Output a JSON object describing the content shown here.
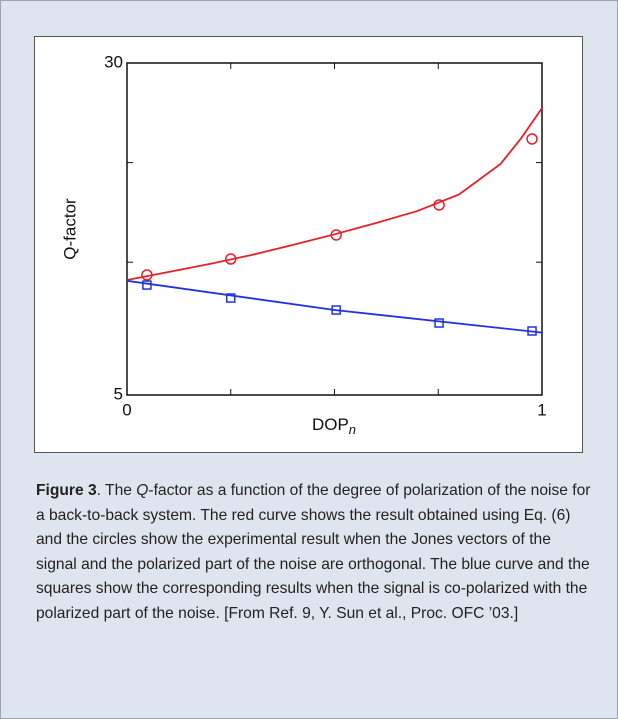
{
  "chart_data": {
    "type": "line",
    "y_label": "Q-factor",
    "x_label": "DOP",
    "x_label_sub": "n",
    "xlim": [
      0,
      1
    ],
    "xticks": [
      0,
      1
    ],
    "minor_xticks": [
      0.25,
      0.5,
      0.75
    ],
    "ylim": [
      5,
      30
    ],
    "yticks": [
      5,
      30
    ],
    "minor_yticks": [
      15,
      22.5
    ],
    "series": [
      {
        "style": "line",
        "color": "#e8202a",
        "x": [
          0,
          0.1,
          0.2,
          0.3,
          0.4,
          0.5,
          0.6,
          0.7,
          0.8,
          0.9,
          0.95,
          1.0
        ],
        "values": [
          13.66,
          14.26,
          14.87,
          15.54,
          16.3,
          17.1,
          17.95,
          18.86,
          20.1,
          22.4,
          24.35,
          26.6
        ]
      },
      {
        "style": "circle",
        "color": "#e8202a",
        "x": [
          0.048,
          0.25,
          0.504,
          0.752,
          0.976
        ],
        "values": [
          14.04,
          15.24,
          17.05,
          19.31,
          24.28
        ]
      },
      {
        "style": "line",
        "color": "#2233dd",
        "x": [
          0,
          0.5,
          1
        ],
        "values": [
          13.6,
          11.4,
          9.7
        ]
      },
      {
        "style": "square",
        "color": "#2233dd",
        "x": [
          0.048,
          0.25,
          0.504,
          0.752,
          0.976
        ],
        "values": [
          13.28,
          12.3,
          11.4,
          10.42,
          9.82
        ]
      }
    ]
  },
  "caption": {
    "label": "Figure 3",
    "parts": [
      ". The ",
      "Q",
      "-factor as a function of the degree of polarization of the noise for a back-to-back system. The red curve shows the result obtained using Eq. (6) and the circles show the experimental result when the Jones vectors of the signal and the polarized part of the noise are orthogonal. The blue curve and the squares show the corresponding results when the signal is co-polarized with the polarized part of the noise. [From Ref. 9, Y. Sun et al., Proc. OFC ’03.]"
    ]
  }
}
